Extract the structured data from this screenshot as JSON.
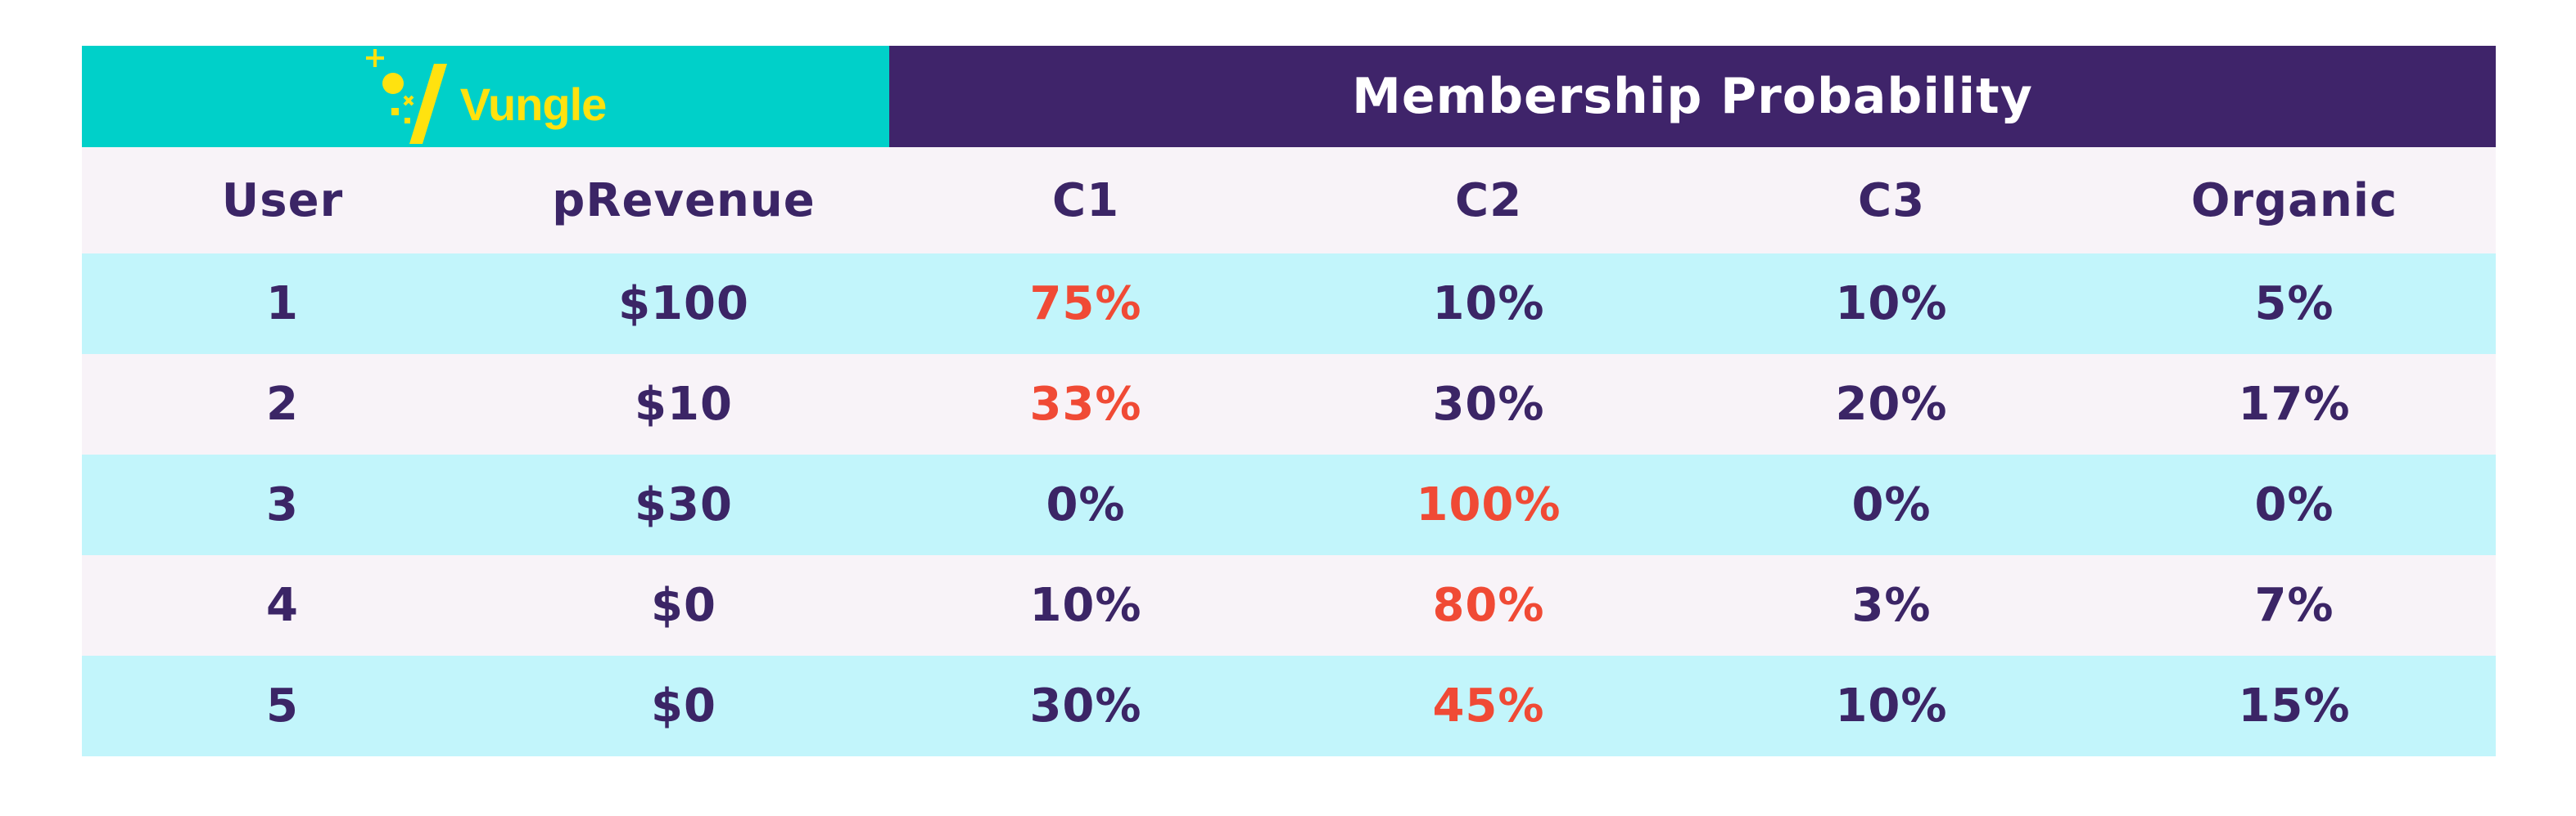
{
  "brand": {
    "logo_text": "Vungle",
    "logo_color": "#ffe20f",
    "logo_bg": "#00d0c9"
  },
  "table_title": "Membership Probability",
  "colors": {
    "header_bg": "#3f246a",
    "text": "#3b2566",
    "highlight": "#f04a35",
    "row_cyan": "#c2f5fb",
    "row_pink": "#f8f3f8"
  },
  "chart_data": {
    "type": "table",
    "title": "Membership Probability",
    "columns": [
      "User",
      "pRevenue",
      "C1",
      "C2",
      "C3",
      "Organic"
    ],
    "rows": [
      {
        "user": "1",
        "prevenue": "$100",
        "c1": "75%",
        "c2": "10%",
        "c3": "10%",
        "organic": "5%",
        "highlight": "c1"
      },
      {
        "user": "2",
        "prevenue": "$10",
        "c1": "33%",
        "c2": "30%",
        "c3": "20%",
        "organic": "17%",
        "highlight": "c1"
      },
      {
        "user": "3",
        "prevenue": "$30",
        "c1": "0%",
        "c2": "100%",
        "c3": "0%",
        "organic": "0%",
        "highlight": "c2"
      },
      {
        "user": "4",
        "prevenue": "$0",
        "c1": "10%",
        "c2": "80%",
        "c3": "3%",
        "organic": "7%",
        "highlight": "c2"
      },
      {
        "user": "5",
        "prevenue": "$0",
        "c1": "30%",
        "c2": "45%",
        "c3": "10%",
        "organic": "15%",
        "highlight": "c2"
      }
    ]
  }
}
